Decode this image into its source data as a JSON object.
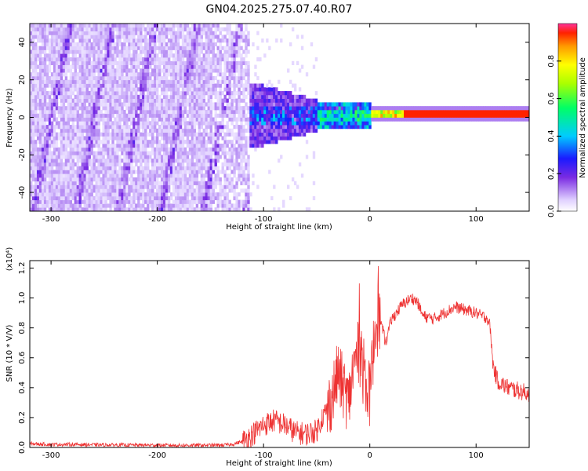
{
  "title": "GN04.2025.275.07.40.R07",
  "chart_data": [
    {
      "type": "heatmap",
      "xlabel": "Height of straight line (km)",
      "ylabel": "Frequency (Hz)",
      "xlim": [
        -320,
        150
      ],
      "ylim": [
        -50,
        50
      ],
      "xticks": [
        -300,
        -200,
        -100,
        0,
        100
      ],
      "yticks": [
        -40,
        -20,
        0,
        20,
        40
      ],
      "colorbar": {
        "label": "Normalized spectral amplitude",
        "range": [
          0.0,
          1.0
        ],
        "ticks": [
          0.0,
          0.2,
          0.4,
          0.6,
          0.8
        ]
      }
    },
    {
      "type": "line",
      "xlabel": "Height of straight line (km)",
      "ylabel": "SNR (10 * V/V)",
      "yscale_note": "(x10⁴)",
      "xlim": [
        -320,
        150
      ],
      "ylim": [
        0.0,
        1.25
      ],
      "xticks": [
        -300,
        -200,
        -100,
        0,
        100
      ],
      "yticks": [
        0.0,
        0.2,
        0.4,
        0.6,
        0.8,
        1.0,
        1.2
      ],
      "color": "#ee3333",
      "series": [
        {
          "x": [
            -320,
            -300,
            -280,
            -260,
            -240,
            -220,
            -200,
            -180,
            -160,
            -140,
            -130,
            -120,
            -110,
            -100,
            -90,
            -80,
            -70,
            -60,
            -50,
            -45,
            -40,
            -35,
            -30,
            -25,
            -20,
            -15,
            -10,
            -5,
            0,
            5,
            10,
            15,
            20,
            25,
            30,
            35,
            40,
            45,
            50,
            60,
            70,
            80,
            90,
            100,
            105,
            110,
            113,
            116,
            120,
            125,
            130,
            140,
            150
          ],
          "y": [
            0.025,
            0.02,
            0.02,
            0.018,
            0.017,
            0.016,
            0.015,
            0.014,
            0.015,
            0.015,
            0.02,
            0.04,
            0.09,
            0.15,
            0.18,
            0.15,
            0.1,
            0.09,
            0.11,
            0.2,
            0.25,
            0.35,
            0.5,
            0.4,
            0.3,
            0.55,
            0.65,
            0.45,
            0.35,
            0.8,
            0.85,
            0.7,
            0.85,
            0.9,
            0.95,
            0.98,
            1.0,
            0.97,
            0.88,
            0.86,
            0.9,
            0.94,
            0.92,
            0.9,
            0.88,
            0.87,
            0.82,
            0.55,
            0.45,
            0.42,
            0.4,
            0.38,
            0.36
          ]
        }
      ]
    }
  ]
}
